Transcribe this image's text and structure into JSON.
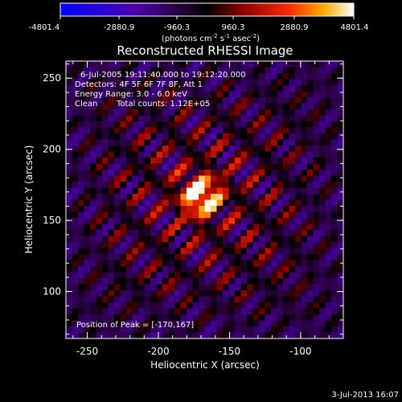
{
  "colorbar": {
    "ticks": [
      "-4801.4",
      "-2880.9",
      "-960.3",
      "960.3",
      "2880.9",
      "4801.4"
    ],
    "units_label": "(photons cm",
    "units_exp1": "-2",
    "units_mid": " s",
    "units_exp2": "-1",
    "units_end": " asec",
    "units_exp3": "-2",
    "units_close": ")"
  },
  "chart_data": {
    "type": "heatmap",
    "title": "Reconstructed RHESSI Image",
    "xlabel": "Heliocentric X (arcsec)",
    "ylabel": "Heliocentric Y (arcsec)",
    "xlim": [
      -265,
      -70
    ],
    "ylim": [
      67,
      262
    ],
    "x_ticks": [
      "-250",
      "-200",
      "-150",
      "-100"
    ],
    "x_tick_values": [
      -250,
      -200,
      -150,
      -100
    ],
    "y_ticks": [
      "100",
      "150",
      "200",
      "250"
    ],
    "y_tick_values": [
      100,
      150,
      200,
      250
    ],
    "zlim": [
      -4801.4,
      4801.4
    ],
    "peak": [
      -170,
      167
    ],
    "annotations": {
      "time": "6-Jul-2005 19:11:40.000 to 19:12:20.000",
      "detectors": "Detectors: 4F 5F 6F 7F 8F, Att 1",
      "energy": "Energy Range: 3.0 - 6.0 keV",
      "clean": "Clean",
      "counts": "Total counts: 1.12E+05",
      "peak_text": "Position of Peak = [-170,167]"
    }
  },
  "footer": {
    "date": "3-Jul-2013 16:07"
  }
}
